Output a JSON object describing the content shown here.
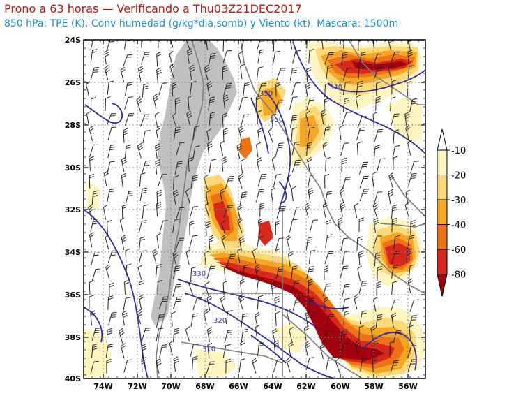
{
  "title": "Prono a 63 horas — Verificando a Thu03Z21DEC2017",
  "subtitle": "850 hPa: TPE (K), Conv humedad (g/kg*dia,somb) y Viento (kt). Mascara: 1500m",
  "lon_labels": [
    "74W",
    "72W",
    "70W",
    "68W",
    "66W",
    "64W",
    "62W",
    "60W",
    "58W",
    "56W"
  ],
  "lat_labels": [
    "24S",
    "26S",
    "28S",
    "30S",
    "32S",
    "34S",
    "36S",
    "38S",
    "40S"
  ],
  "colorbar": {
    "labels": [
      "-10",
      "-20",
      "-30",
      "-40",
      "-60",
      "-80"
    ],
    "colors": [
      "#fff5c0",
      "#fbd87a",
      "#f5a623",
      "#ee7318",
      "#d8281c",
      "#a3000f"
    ]
  },
  "contour_labels": [
    "350",
    "340",
    "350",
    "330",
    "320",
    "310"
  ],
  "colors": {
    "mask": "#c0c0c0",
    "contour": "#2b2b99",
    "border": "#7d7d7d",
    "title": "#b01818",
    "subtitle": "#1a8fc0"
  }
}
